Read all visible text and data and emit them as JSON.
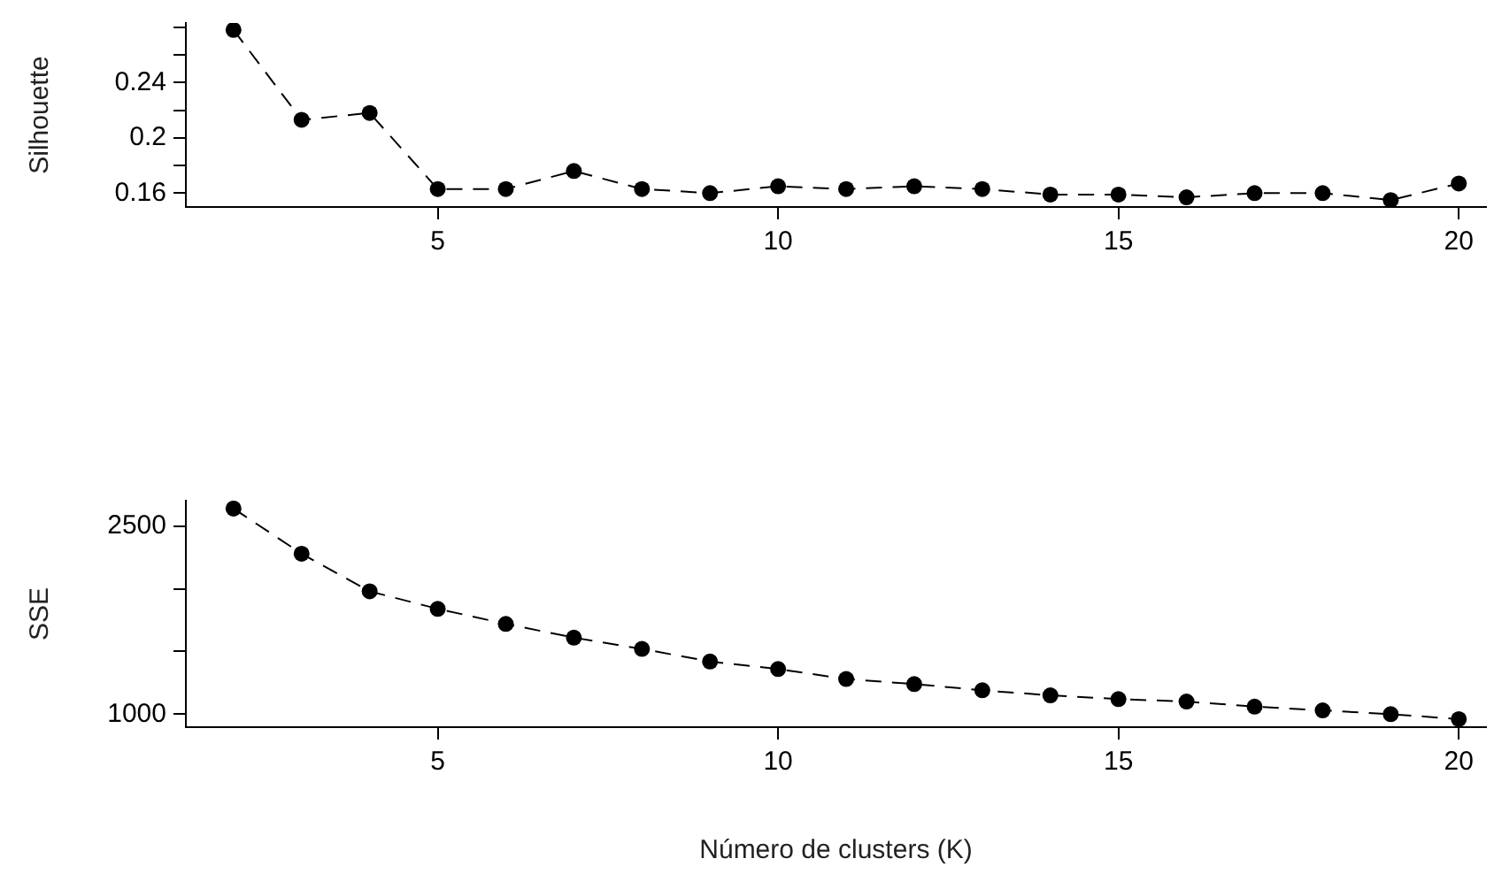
{
  "chart_data": [
    {
      "type": "line",
      "ylabel": "Silhouette",
      "x": [
        2,
        3,
        4,
        5,
        6,
        7,
        8,
        9,
        10,
        11,
        12,
        13,
        14,
        15,
        16,
        17,
        18,
        19,
        20
      ],
      "values": [
        0.278,
        0.213,
        0.218,
        0.163,
        0.163,
        0.176,
        0.163,
        0.16,
        0.165,
        0.163,
        0.165,
        0.163,
        0.159,
        0.159,
        0.157,
        0.16,
        0.16,
        0.155,
        0.167
      ],
      "color": "#000000",
      "xlim": [
        1.3,
        20.4
      ],
      "xticks": [
        5,
        10,
        15,
        20
      ],
      "ylim": [
        0.15,
        0.283
      ],
      "yticks": [
        0.16,
        {
          "value": 0.18,
          "label": null
        },
        0.2,
        {
          "value": 0.22,
          "label": null
        },
        0.24,
        {
          "value": 0.26,
          "label": null
        },
        {
          "value": 0.28,
          "label": null
        }
      ],
      "marker": "circle",
      "line_style": "dashed",
      "legend": false,
      "grid": false
    },
    {
      "type": "line",
      "ylabel": "SSE",
      "xlabel": "Número de clusters (K)",
      "x": [
        2,
        3,
        4,
        5,
        6,
        7,
        8,
        9,
        10,
        11,
        12,
        13,
        14,
        15,
        16,
        17,
        18,
        19,
        20
      ],
      "values": [
        2640,
        2280,
        1980,
        1840,
        1720,
        1610,
        1520,
        1420,
        1360,
        1280,
        1240,
        1190,
        1150,
        1120,
        1100,
        1060,
        1030,
        1000,
        960
      ],
      "color": "#000000",
      "xlim": [
        1.3,
        20.4
      ],
      "xticks": [
        5,
        10,
        15,
        20
      ],
      "ylim": [
        896,
        2703
      ],
      "yticks": [
        1000,
        {
          "value": 1500,
          "label": null
        },
        {
          "value": 2000,
          "label": null
        },
        2500
      ],
      "marker": "circle",
      "line_style": "dashed",
      "legend": false,
      "grid": false
    }
  ]
}
